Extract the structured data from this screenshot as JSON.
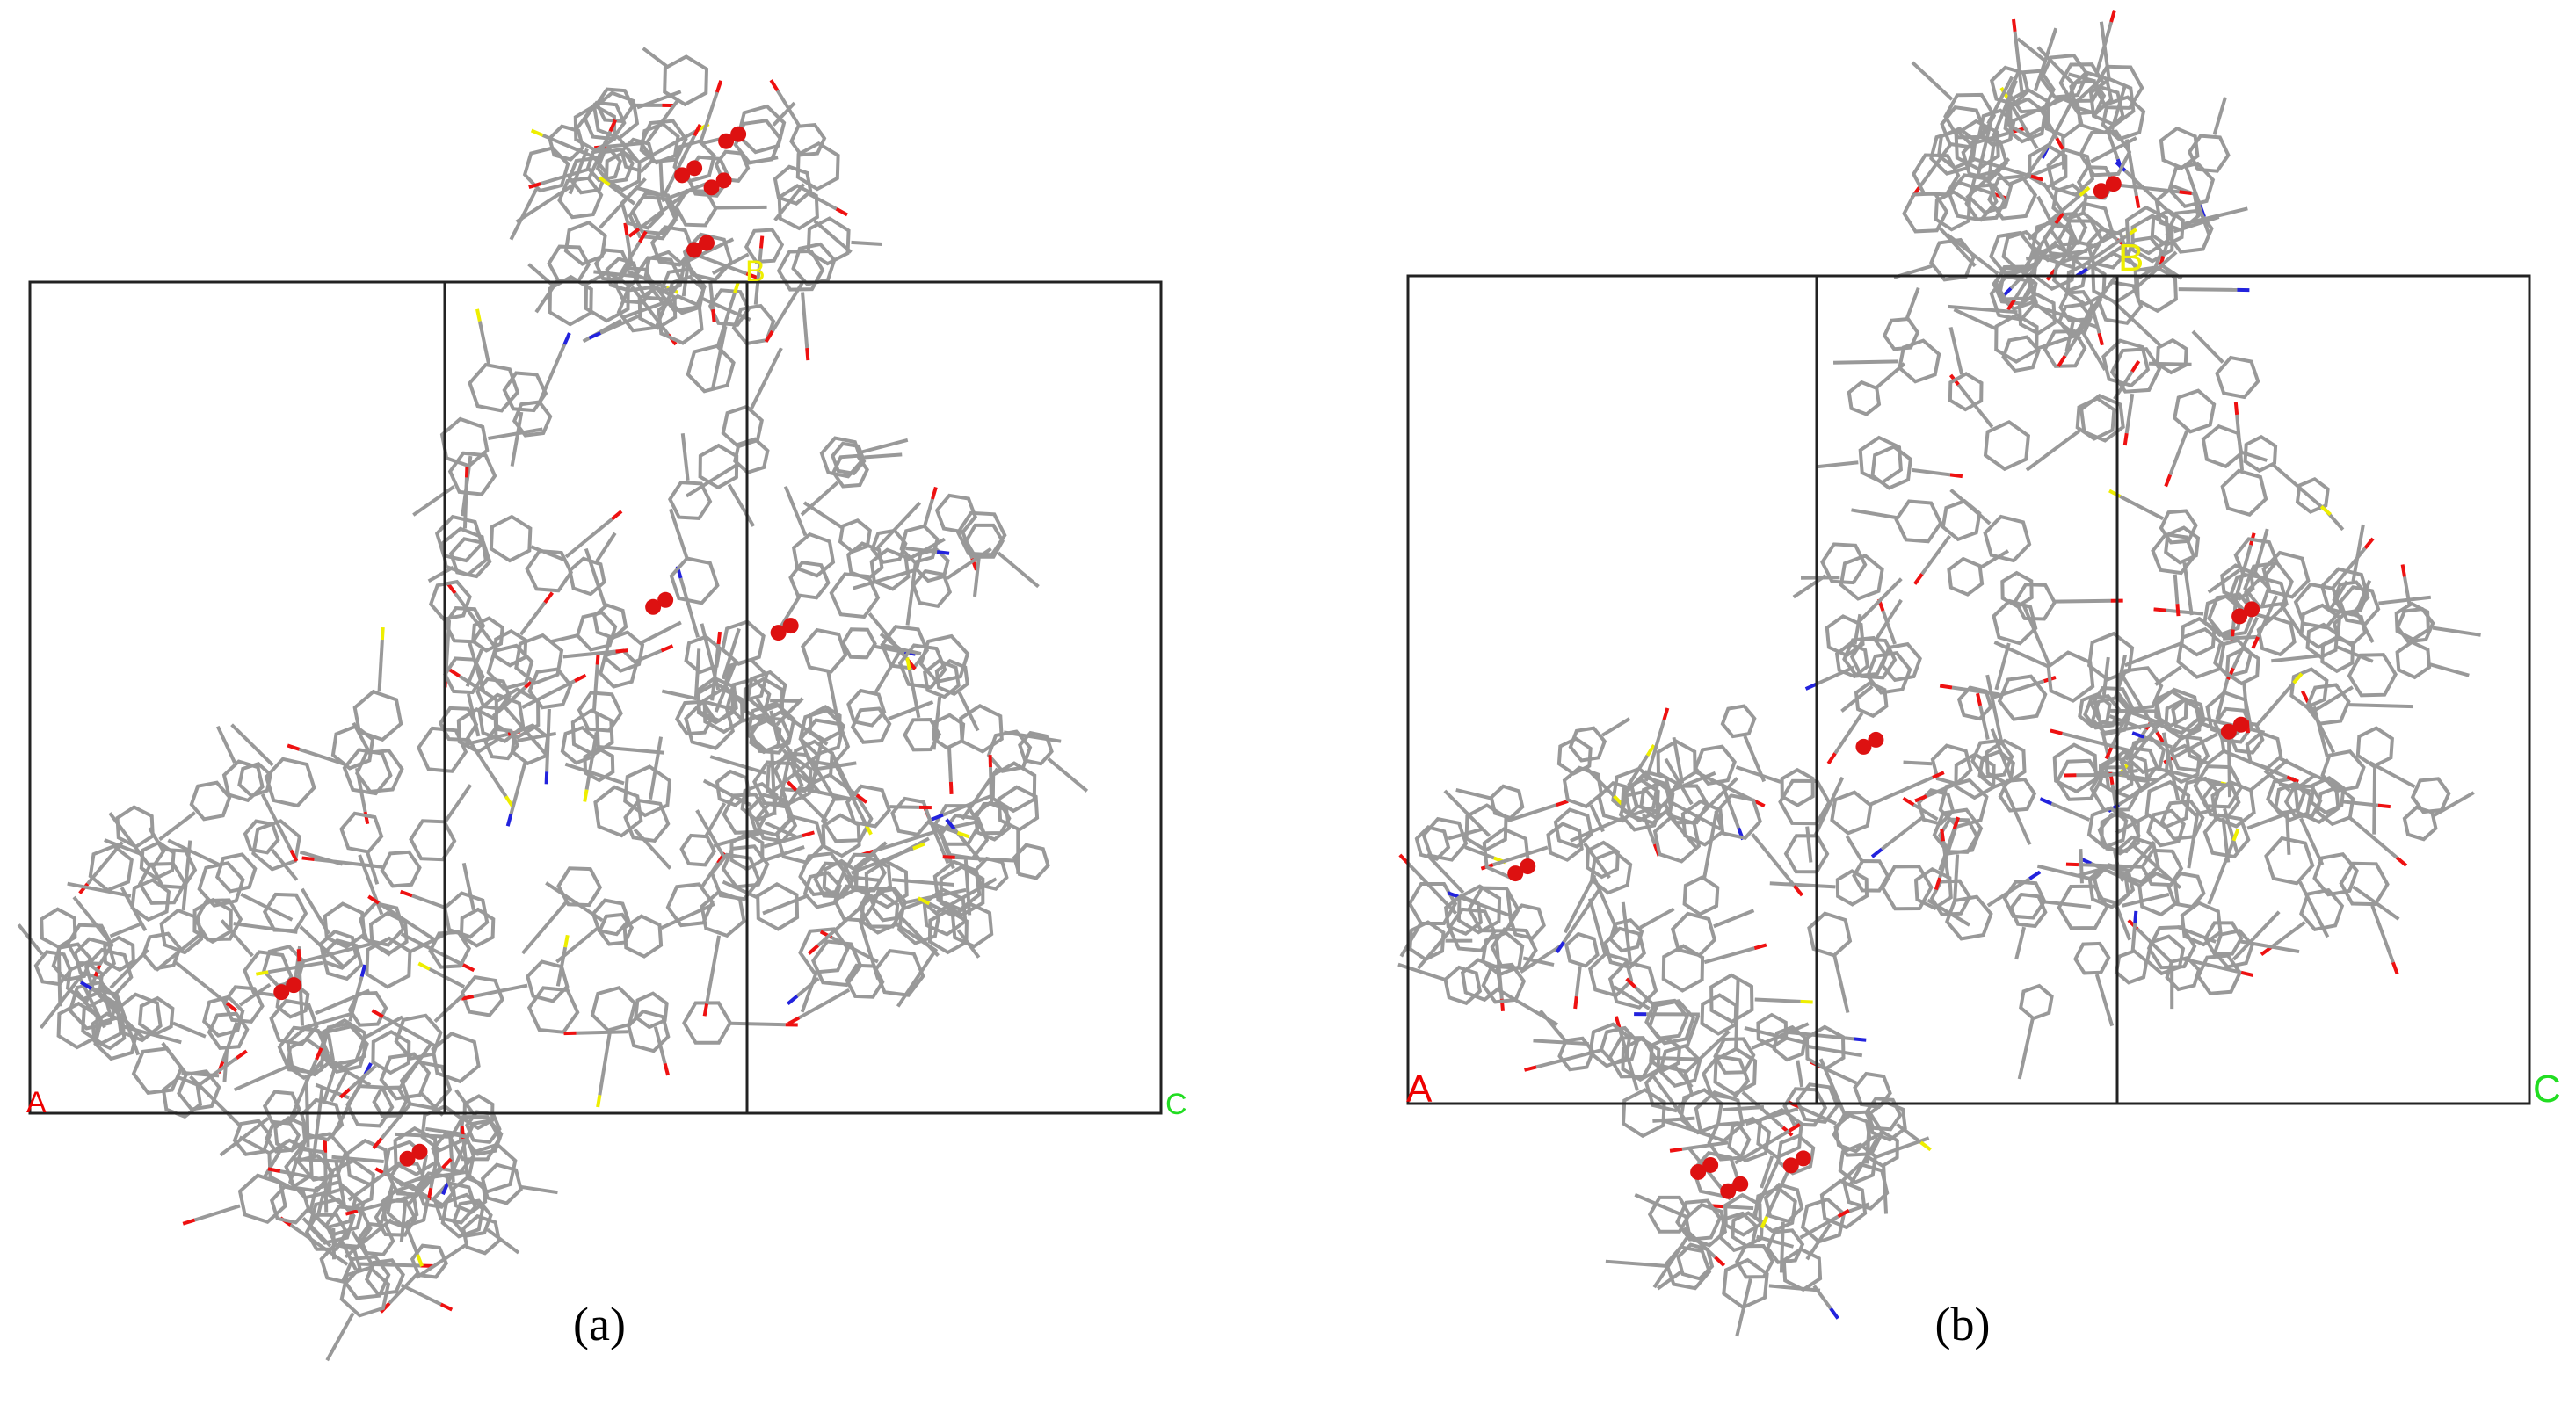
{
  "panels": [
    {
      "caption": "(a)",
      "axis_labels": {
        "a": "A",
        "b": "B",
        "c": "C"
      }
    },
    {
      "caption": "(b)",
      "axis_labels": {
        "a": "A",
        "b": "B",
        "c": "C"
      }
    }
  ]
}
